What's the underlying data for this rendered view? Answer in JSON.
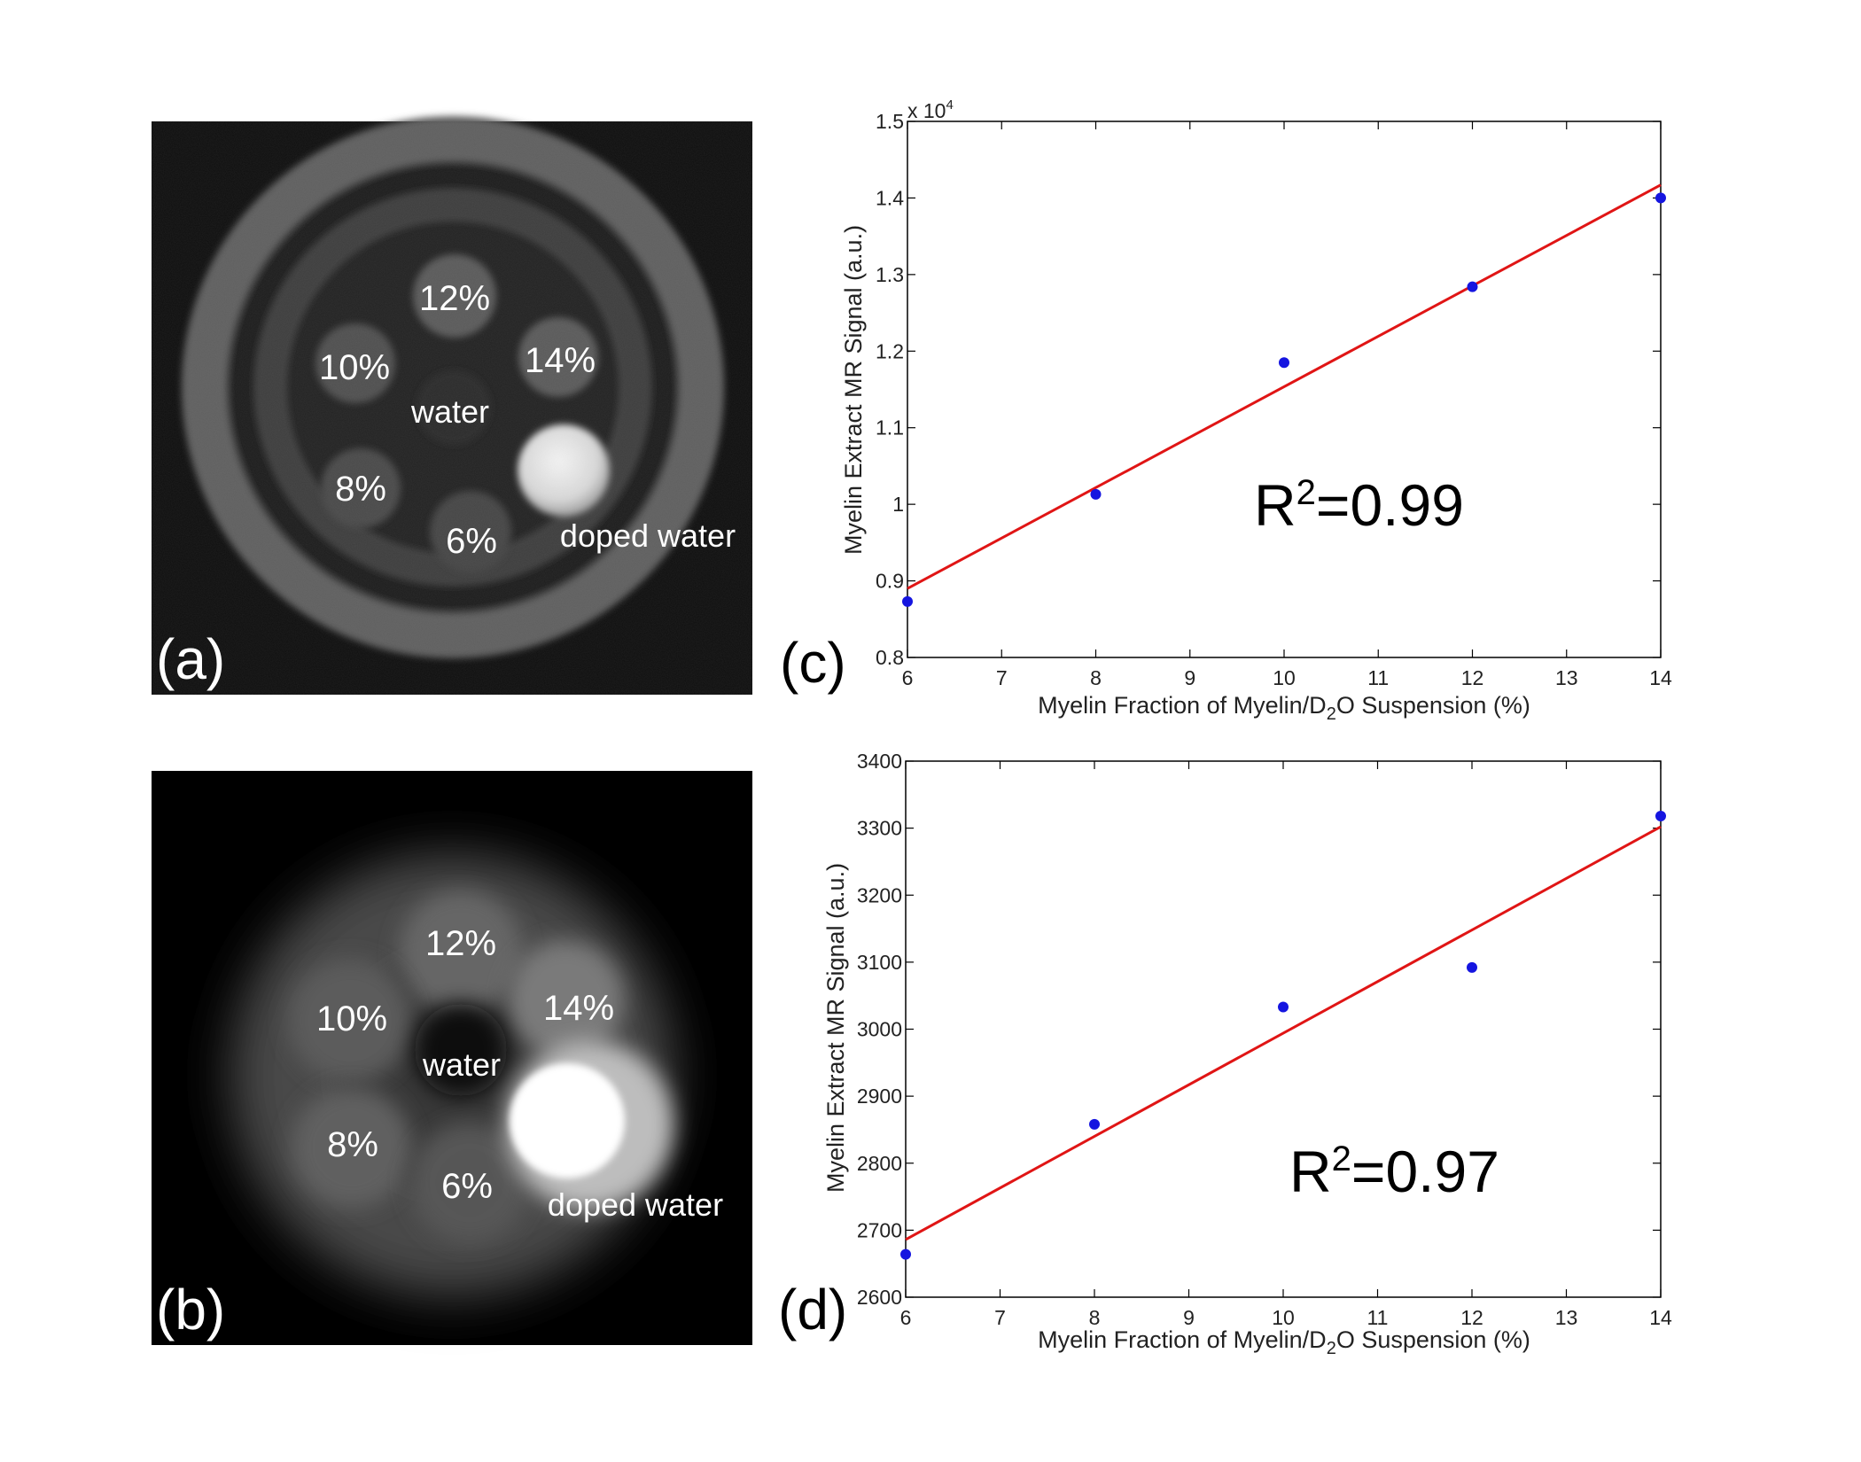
{
  "figure": {
    "panel_a": {
      "letter": "(a)",
      "labels": {
        "p12": "12%",
        "p10": "10%",
        "p14": "14%",
        "water": "water",
        "p8": "8%",
        "p6": "6%",
        "doped": "doped water"
      }
    },
    "panel_b": {
      "letter": "(b)",
      "labels": {
        "p12": "12%",
        "p10": "10%",
        "p14": "14%",
        "water": "water",
        "p8": "8%",
        "p6": "6%",
        "doped": "doped water"
      }
    },
    "panel_c": {
      "letter": "(c)"
    },
    "panel_d": {
      "letter": "(d)"
    }
  },
  "chart_data": [
    {
      "type": "scatter",
      "panel": "c",
      "xlabel_pre": "Myelin Fraction of Myelin/D",
      "xlabel_sub": "2",
      "xlabel_post": "O Suspension (%)",
      "ylabel": "Myelin Extract MR Signal (a.u.)",
      "x_ticks": [
        "6",
        "7",
        "8",
        "9",
        "10",
        "11",
        "12",
        "13",
        "14"
      ],
      "y_ticks": [
        "0.8",
        "0.9",
        "1",
        "1.1",
        "1.2",
        "1.3",
        "1.4",
        "1.5"
      ],
      "y_multiplier_base": "x 10",
      "y_multiplier_exp": "4",
      "xlim": [
        6,
        14
      ],
      "ylim": [
        0.8,
        1.5
      ],
      "points_x": [
        6,
        8,
        10,
        12,
        14
      ],
      "points_y": [
        0.873,
        1.013,
        1.185,
        1.284,
        1.4
      ],
      "fit_line": {
        "x": [
          6,
          14
        ],
        "y": [
          0.89,
          1.417
        ]
      },
      "annotation_base": "R",
      "annotation_exp": "2",
      "annotation_value": "=0.99",
      "point_color": "#1515e0",
      "line_color": "#e01515"
    },
    {
      "type": "scatter",
      "panel": "d",
      "xlabel_pre": "Myelin Fraction of Myelin/D",
      "xlabel_sub": "2",
      "xlabel_post": "O Suspension (%)",
      "ylabel": "Myelin Extract MR Signal (a.u.)",
      "x_ticks": [
        "6",
        "7",
        "8",
        "9",
        "10",
        "11",
        "12",
        "13",
        "14"
      ],
      "y_ticks": [
        "2600",
        "2700",
        "2800",
        "2900",
        "3000",
        "3100",
        "3200",
        "3300",
        "3400"
      ],
      "xlim": [
        6,
        14
      ],
      "ylim": [
        2600,
        3400
      ],
      "points_x": [
        6,
        8,
        10,
        12,
        14
      ],
      "points_y": [
        2664,
        2858,
        3033,
        3092,
        3318
      ],
      "fit_line": {
        "x": [
          6,
          14
        ],
        "y": [
          2686,
          3302
        ]
      },
      "annotation_base": "R",
      "annotation_exp": "2",
      "annotation_value": "=0.97",
      "point_color": "#1515e0",
      "line_color": "#e01515"
    }
  ]
}
